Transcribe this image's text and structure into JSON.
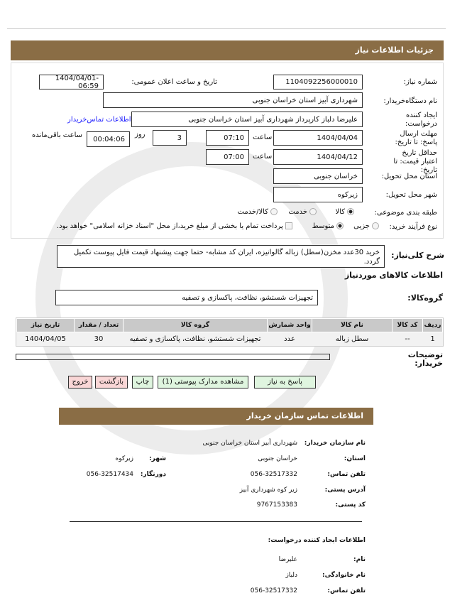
{
  "header": {
    "title": "جزئیات اطلاعات نیاز"
  },
  "form": {
    "need_number_label": "شماره نیاز:",
    "need_number": "1104092256000010",
    "announce_label": "تاریخ و ساعت اعلان عمومی:",
    "announce_value": "1404/04/01- 06:59",
    "buyer_org_label": "نام دستگاه‌خریدار:",
    "buyer_org": "شهرداری آبیز استان خراسان جنوبی",
    "creator_label": "ایجاد کننده درخواست:",
    "creator": "علیرضا دلباز کارپرداز شهرداری آبیز استان خراسان جنوبی",
    "contact_link": "اطلاعات تماس‌خریدار",
    "deadline_label": "مهلت ارسال پاسخ: تا تاریخ:",
    "deadline_date": "1404/04/04",
    "time_label": "ساعت",
    "deadline_time": "07:10",
    "days": "3",
    "days_label": "روز",
    "remaining": "00:04:06",
    "remaining_label": "ساعت باقی‌مانده",
    "validity_label": "حداقل تاریخ اعتبار قیمت: تا تاریخ:",
    "validity_date": "1404/04/12",
    "validity_time": "07:00",
    "province_label": "استان محل تحویل:",
    "province": "خراسان جنوبی",
    "city_label": "شهر محل تحویل:",
    "city": "زیرکوه",
    "category_label": "طبقه بندی موضوعی:",
    "category_options": [
      "کالا",
      "خدمت",
      "کالا/خدمت"
    ],
    "category_selected": "کالا",
    "process_label": "نوع فرآیند خرید:",
    "process_options": [
      "جزیی",
      "متوسط"
    ],
    "process_selected": "متوسط",
    "payment_note": "پرداخت تمام یا بخشی از مبلغ خرید،از محل \"اسناد خزانه اسلامی\" خواهد بود."
  },
  "description": {
    "label": "شرح کلی‌نیاز:",
    "text": "خرید 30عدد مخزن(سطل) زباله گالوانیزه، ایران کد مشابه- حتما جهت پیشنهاد قیمت فایل پیوست تکمیل گردد."
  },
  "goods": {
    "title": "اطلاعات کالاهای موردنیاز",
    "group_label": "گروه‌کالا:",
    "group": "تجهیزات شستشو، نظافت، پاکسازی و تصفیه",
    "columns": [
      "ردیف",
      "کد کالا",
      "نام کالا",
      "واحد شمارش",
      "گروه کالا",
      "تعداد / مقدار",
      "تاریخ نیاز"
    ],
    "rows": [
      [
        "1",
        "--",
        "سطل زباله",
        "عدد",
        "تجهیزات شستشو، نظافت، پاکسازی و تصفیه",
        "30",
        "1404/04/05"
      ]
    ]
  },
  "buyer_notes_label": "توضیحات خریدار:",
  "buttons": {
    "reply": "پاسخ به نیاز",
    "attachments": "مشاهده مدارک پیوستی (1)",
    "print": "چاپ",
    "back": "بازگشت",
    "exit": "خروج"
  },
  "contact": {
    "title": "اطلاعات تماس سازمان خریدار",
    "org_label": "نام سازمان خریدار:",
    "org": "شهرداری آبیز استان خراسان جنوبی",
    "province_label": "استان:",
    "province": "خراسان جنوبی",
    "city_label": "شهر:",
    "city": "زیرکوه",
    "phone_label": "تلفن تماس:",
    "phone": "056-32517332",
    "fax_label": "دورنگار:",
    "fax": "056-32517434",
    "address_label": "آدرس پستی:",
    "address": "زیر کوه شهرداری آبیز",
    "postal_label": "کد پستی:",
    "postal": "9767153383",
    "creator_title": "اطلاعات ایجاد کننده درخواست:",
    "name_label": "نام:",
    "name": "علیرضا",
    "family_label": "نام خانوادگی:",
    "family": "دلباز",
    "cphone_label": "تلفن تماس:",
    "cphone": "056-32517332"
  },
  "colors": {
    "header": "#8a6d45",
    "link": "#1a1aff",
    "green_button": "#dff5df",
    "pink_button": "#f9d6d6"
  }
}
